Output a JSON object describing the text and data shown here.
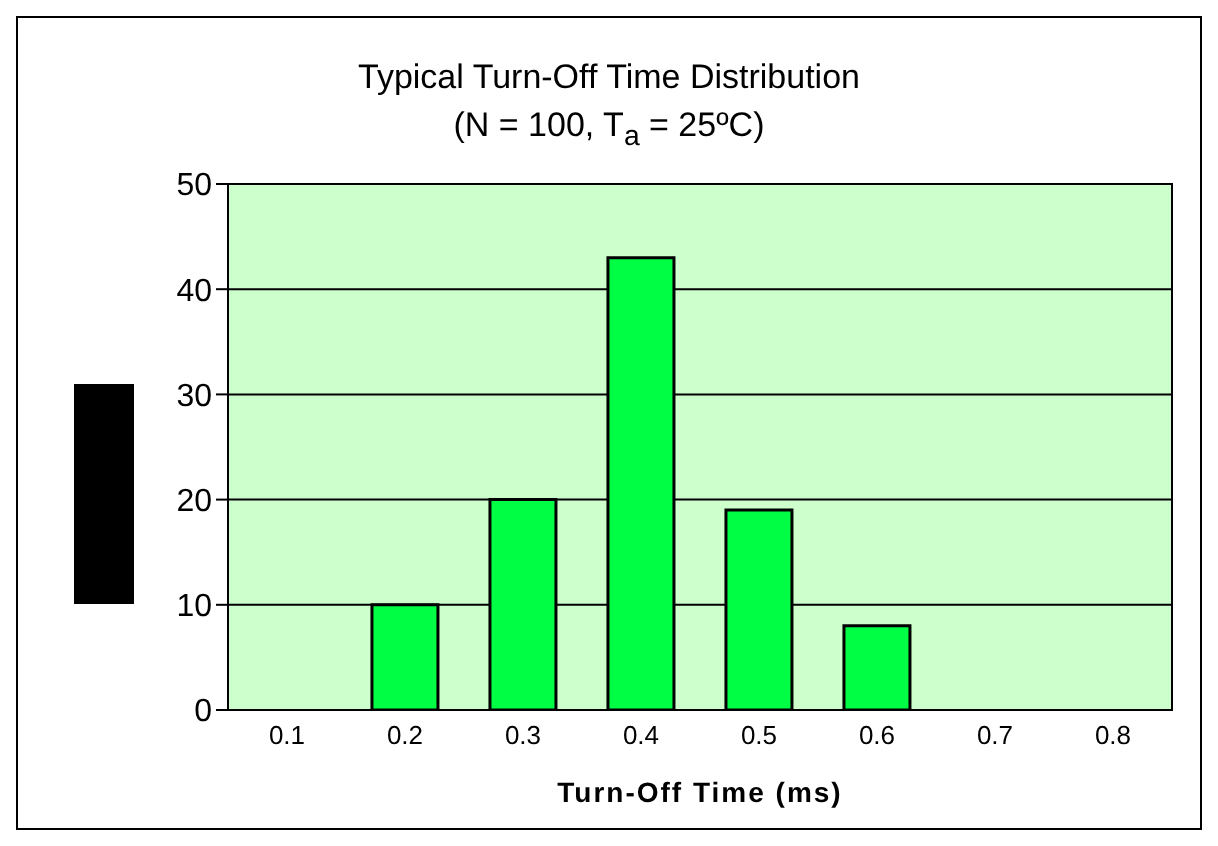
{
  "chart_data": {
    "type": "bar",
    "title": "Typical Turn-Off Time Distribution",
    "subtitle": "(N = 100, T$_{a}$ = 25ºC)",
    "xlabel": "Turn-Off Time (ms)",
    "categories": [
      "0.1",
      "0.2",
      "0.3",
      "0.4",
      "0.5",
      "0.6",
      "0.7",
      "0.8"
    ],
    "values": [
      0,
      10,
      20,
      43,
      19,
      8,
      0,
      0
    ],
    "color": "#00ff44",
    "ylim": [
      0,
      50
    ],
    "yticks": [
      0,
      10,
      20,
      30,
      40,
      50
    ],
    "grid": "y"
  }
}
